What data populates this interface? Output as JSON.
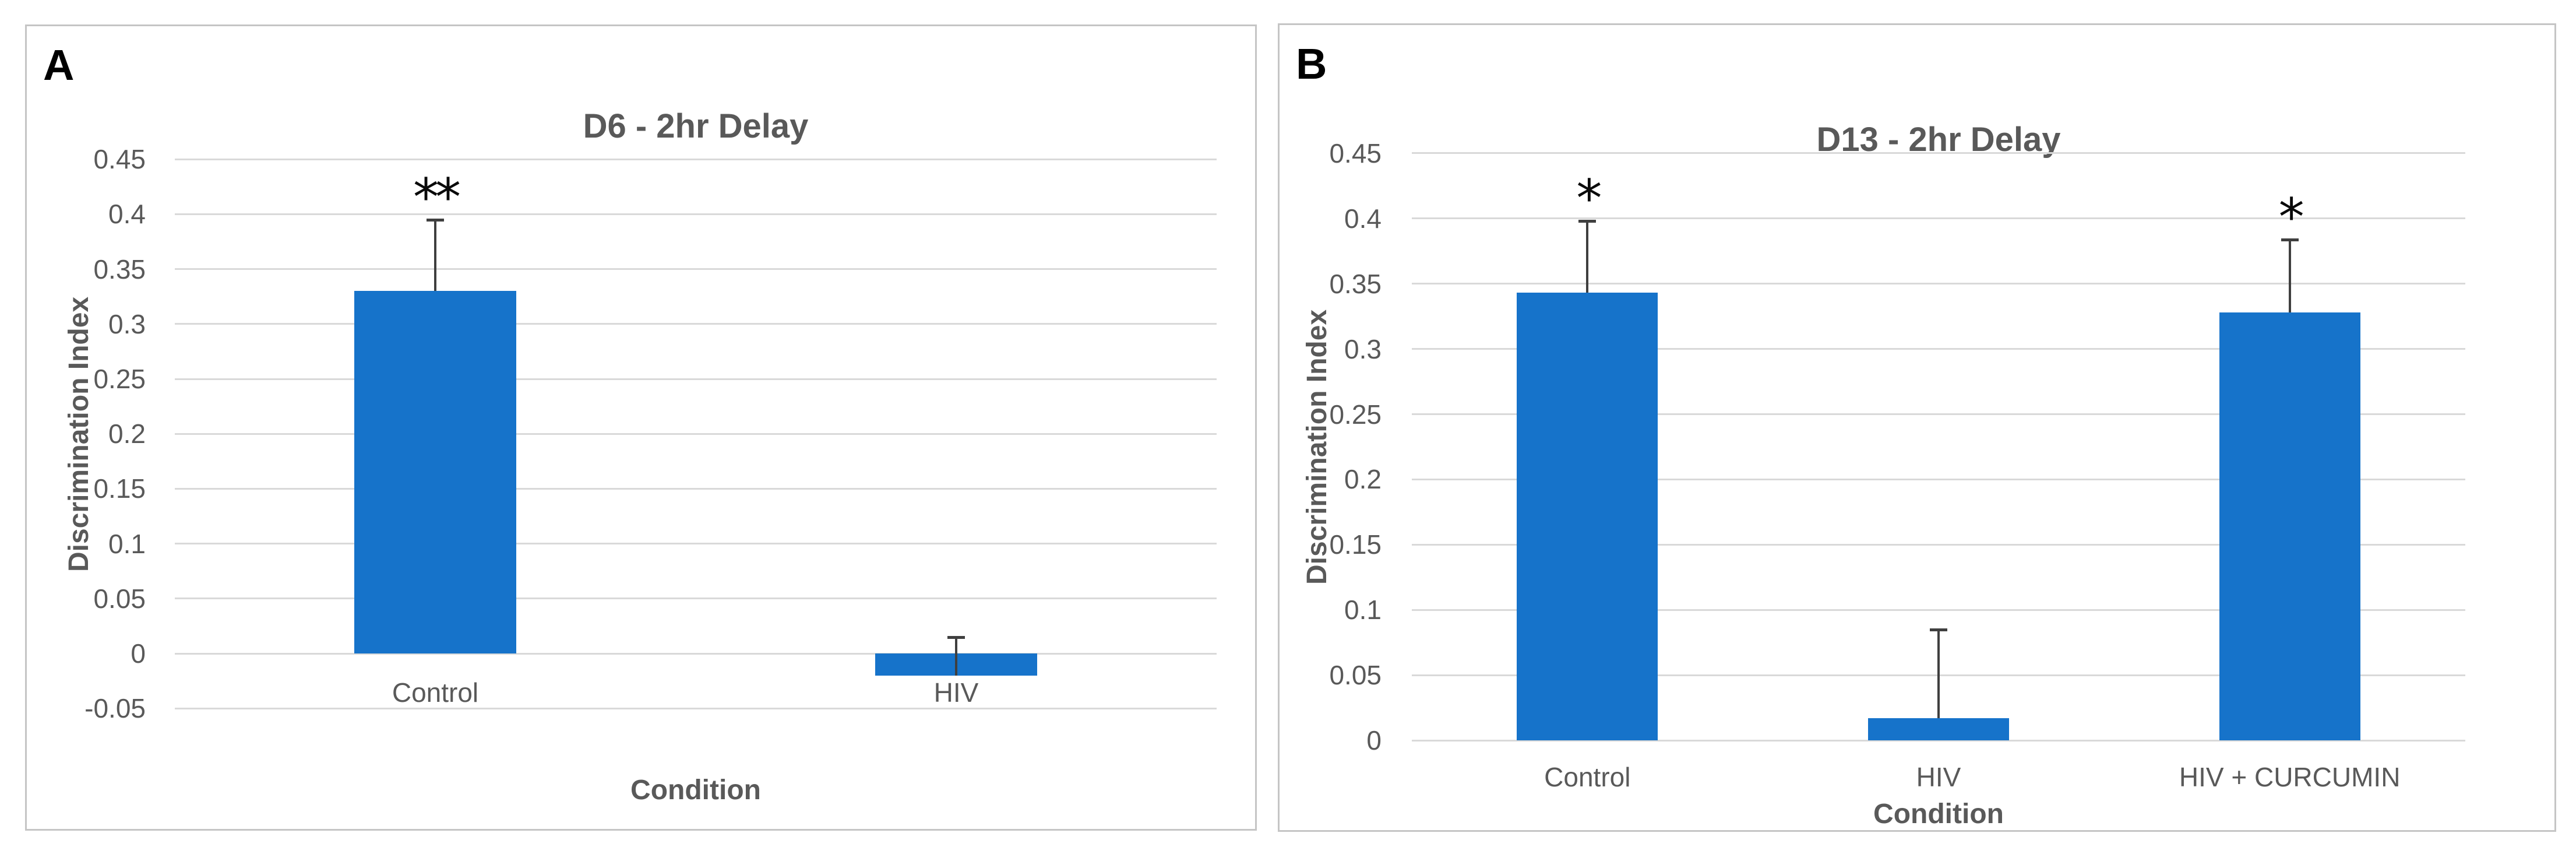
{
  "chart_data": [
    {
      "type": "bar",
      "panel_label": "A",
      "title": "D6 - 2hr Delay",
      "xlabel": "Condition",
      "ylabel": "Discrimination Index",
      "categories": [
        "Control",
        "HIV"
      ],
      "values": [
        0.33,
        -0.02
      ],
      "error_plus": [
        0.065,
        0.035
      ],
      "significance": [
        "**",
        ""
      ],
      "ylim": [
        -0.05,
        0.45
      ],
      "ytick_step": 0.05,
      "ytick_labels": [
        "-0.05",
        "0",
        "0.05",
        "0.1",
        "0.15",
        "0.2",
        "0.25",
        "0.3",
        "0.35",
        "0.4",
        "0.45"
      ],
      "grid": true,
      "legend": "none",
      "bar_color": "#1673CA"
    },
    {
      "type": "bar",
      "panel_label": "B",
      "title": "D13 - 2hr Delay",
      "xlabel": "Condition",
      "ylabel": "Discrimination Index",
      "categories": [
        "Control",
        "HIV",
        "HIV + CURCUMIN"
      ],
      "values": [
        0.343,
        0.017,
        0.328
      ],
      "error_plus": [
        0.055,
        0.068,
        0.056
      ],
      "significance": [
        "*",
        "",
        "*"
      ],
      "ylim": [
        0,
        0.45
      ],
      "ytick_step": 0.05,
      "ytick_labels": [
        "0",
        "0.05",
        "0.1",
        "0.15",
        "0.2",
        "0.25",
        "0.3",
        "0.35",
        "0.4",
        "0.45"
      ],
      "grid": true,
      "legend": "none",
      "bar_color": "#1673CA"
    }
  ],
  "colors": {
    "bar_blue": "#1673CA",
    "gridline_gray": "#D9D9D9",
    "axis_text_gray": "#595959",
    "error_bar_dark": "#3F3F3F",
    "panel_border_gray": "#C5C5C5",
    "background": "#FFFFFF",
    "significance_black": "#0A0A0A"
  }
}
